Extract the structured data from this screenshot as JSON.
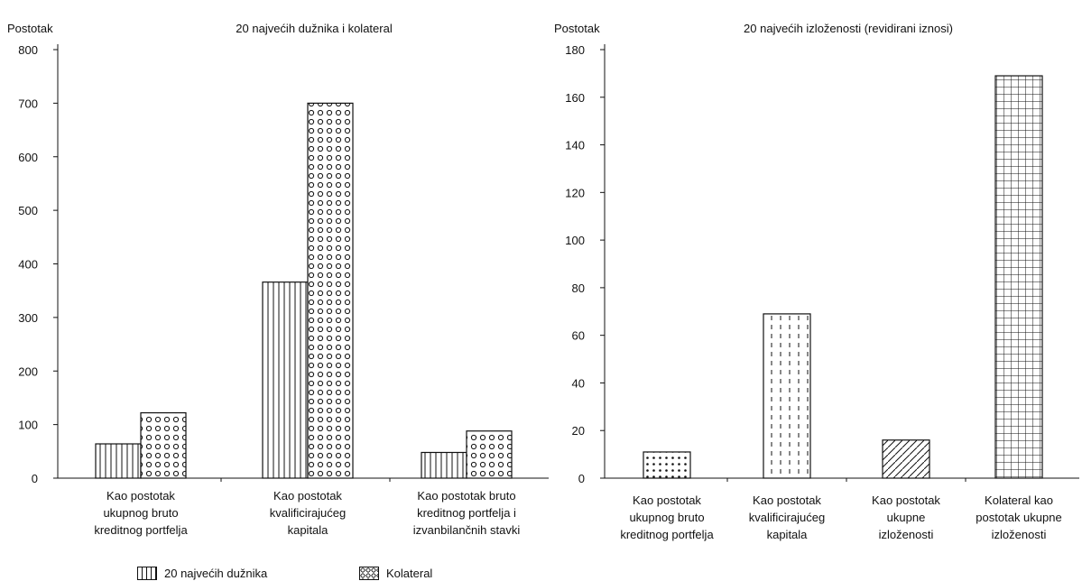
{
  "chart_data": [
    {
      "type": "bar",
      "title": "20 najvećih dužnika i kolateral",
      "ylabel": "Postotak",
      "ylim": [
        0,
        800
      ],
      "yticks": [
        0,
        100,
        200,
        300,
        400,
        500,
        600,
        700,
        800
      ],
      "categories": [
        [
          "Kao postotak",
          "ukupnog bruto",
          "kreditnog portfelja"
        ],
        [
          "Kao postotak",
          "kvalificirajućeg",
          "kapitala"
        ],
        [
          "Kao postotak bruto",
          "kreditnog portfelja i",
          "izvanbilančnih stavki"
        ]
      ],
      "series": [
        {
          "name": "20 najvećih dužnika",
          "pattern": "vertical-lines",
          "values": [
            64,
            366,
            48
          ]
        },
        {
          "name": "Kolateral",
          "pattern": "circles",
          "values": [
            122,
            700,
            88
          ]
        }
      ],
      "legend": "bottom"
    },
    {
      "type": "bar",
      "title": "20 najvećih izloženosti (revidirani iznosi)",
      "ylabel": "Postotak",
      "ylim": [
        0,
        180
      ],
      "yticks": [
        0,
        20,
        40,
        60,
        80,
        100,
        120,
        140,
        160,
        180
      ],
      "categories": [
        [
          "Kao postotak",
          "ukupnog bruto",
          "kreditnog portfelja"
        ],
        [
          "Kao postotak",
          "kvalificirajućeg",
          "kapitala"
        ],
        [
          "Kao postotak",
          "ukupne",
          "izloženosti"
        ],
        [
          "Kolateral kao",
          "postotak ukupne",
          "izloženosti"
        ]
      ],
      "values": [
        11,
        69,
        16,
        169
      ],
      "patterns": [
        "dots",
        "dashed-vertical",
        "diagonal",
        "grid"
      ]
    }
  ]
}
